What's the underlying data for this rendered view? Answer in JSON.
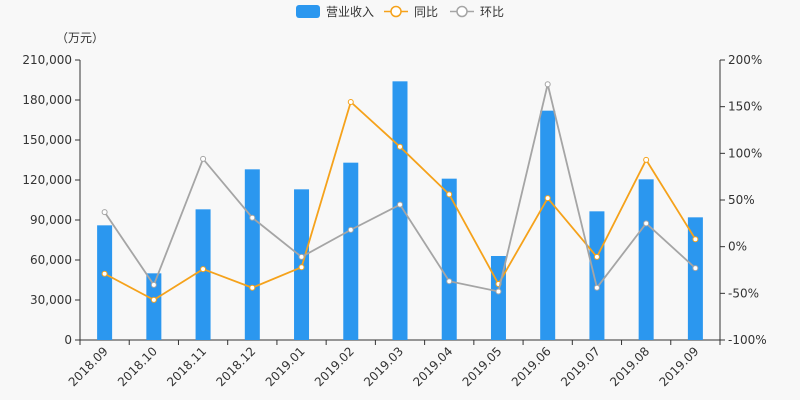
{
  "chart_data": {
    "type": "bar",
    "categories": [
      "2018.09",
      "2018.10",
      "2018.11",
      "2018.12",
      "2019.01",
      "2019.02",
      "2019.03",
      "2019.04",
      "2019.05",
      "2019.06",
      "2019.07",
      "2019.08",
      "2019.09"
    ],
    "y_left_unit": "（万元）",
    "y_left_ticks": [
      "0",
      "30,000",
      "60,000",
      "90,000",
      "120,000",
      "150,000",
      "180,000",
      "210,000"
    ],
    "y_right_ticks": [
      "-100%",
      "-50%",
      "0%",
      "50%",
      "100%",
      "150%",
      "200%"
    ],
    "y_left_range": [
      0,
      210000
    ],
    "y_right_range": [
      -100,
      200
    ],
    "grid": false,
    "legend_position": "top-center",
    "series": [
      {
        "name": "营业收入",
        "type": "bar",
        "axis": "left",
        "color": "#2b97ef",
        "values": [
          86000,
          50000,
          98000,
          128000,
          113000,
          133000,
          194000,
          121000,
          63000,
          172000,
          96500,
          120500,
          92000
        ]
      },
      {
        "name": "同比",
        "type": "line",
        "axis": "right",
        "color": "#f5a21b",
        "values": [
          -29,
          -57,
          -24,
          -44,
          -22,
          155,
          107,
          56,
          -40,
          52,
          -11,
          93,
          8
        ]
      },
      {
        "name": "环比",
        "type": "line",
        "axis": "right",
        "color": "#a5a5a5",
        "values": [
          37,
          -41,
          94,
          31,
          -11,
          18,
          45,
          -37,
          -48,
          174,
          -44,
          25,
          -23
        ]
      }
    ]
  }
}
